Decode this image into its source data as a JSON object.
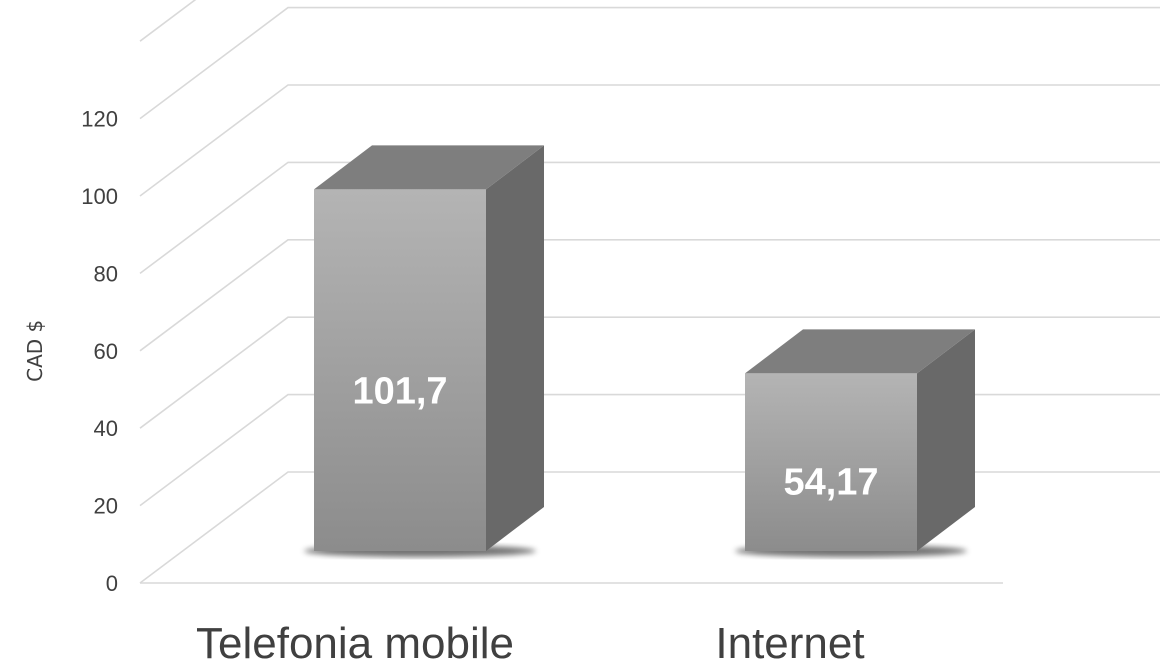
{
  "chart_data": {
    "type": "bar",
    "title": "",
    "xlabel": "",
    "ylabel": "CAD $",
    "categories": [
      "Telefonia mobile",
      "Internet"
    ],
    "values": [
      101.7,
      54.17
    ],
    "data_labels": [
      "101,7",
      "54,17"
    ],
    "yticks": [
      0,
      20,
      40,
      60,
      80,
      100,
      120
    ],
    "ylim": [
      0,
      140
    ],
    "grid": true,
    "legend": "none",
    "style": "3d-column",
    "colors": {
      "bar_front_top": "#b4b4b4",
      "bar_front_bottom": "#8c8c8c",
      "bar_side": "#696969",
      "bar_top": "#7e7e7e",
      "gridline": "#d9d9d9",
      "text": "#404040",
      "data_label": "#ffffff"
    }
  }
}
